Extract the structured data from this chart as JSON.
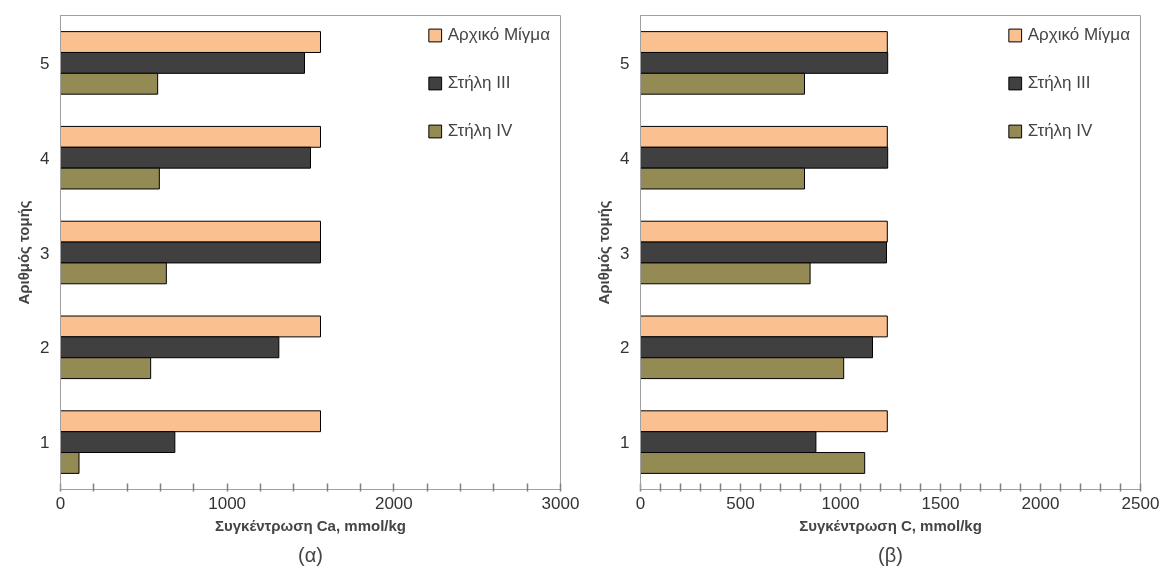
{
  "chart_data": [
    {
      "type": "bar",
      "orientation": "horizontal",
      "categories": [
        "5",
        "4",
        "3",
        "2",
        "1"
      ],
      "xlabel": "Συγκέντρωση Ca, mmol/kg",
      "ylabel": "Αριθμός τομής",
      "annotations": [
        "(α)"
      ],
      "xlim": [
        0,
        3000
      ],
      "xticks": [
        0,
        {
          "value": 200,
          "label": null
        },
        {
          "value": 400,
          "label": null
        },
        {
          "value": 600,
          "label": null
        },
        {
          "value": 800,
          "label": null
        },
        1000,
        {
          "value": 1200,
          "label": null
        },
        {
          "value": 1400,
          "label": null
        },
        {
          "value": 1600,
          "label": null
        },
        {
          "value": 1800,
          "label": null
        },
        2000,
        {
          "value": 2200,
          "label": null
        },
        {
          "value": 2400,
          "label": null
        },
        {
          "value": 2600,
          "label": null
        },
        {
          "value": 2800,
          "label": null
        },
        3000
      ],
      "grid": false,
      "legend": "top right",
      "series": [
        {
          "name": "Αρχικό Μίγμα",
          "color": "#fac090",
          "values": [
            1560,
            1560,
            1560,
            1560,
            1560
          ]
        },
        {
          "name": "Στήλη III",
          "color": "#404040",
          "values": [
            1464,
            1500,
            1560,
            1310,
            686
          ]
        },
        {
          "name": "Στήλη IV",
          "color": "#948a54",
          "values": [
            583,
            593,
            635,
            541,
            111
          ]
        }
      ]
    },
    {
      "type": "bar",
      "orientation": "horizontal",
      "categories": [
        "5",
        "4",
        "3",
        "2",
        "1"
      ],
      "xlabel": "Συγκέντρωση C, mmol/kg",
      "ylabel": "Αριθμός τομής",
      "annotations": [
        "(β)"
      ],
      "xlim": [
        0,
        2500
      ],
      "xticks": [
        0,
        {
          "value": 100,
          "label": null
        },
        {
          "value": 200,
          "label": null
        },
        {
          "value": 300,
          "label": null
        },
        {
          "value": 400,
          "label": null
        },
        500,
        {
          "value": 600,
          "label": null
        },
        {
          "value": 700,
          "label": null
        },
        {
          "value": 800,
          "label": null
        },
        {
          "value": 900,
          "label": null
        },
        1000,
        {
          "value": 1100,
          "label": null
        },
        {
          "value": 1200,
          "label": null
        },
        {
          "value": 1300,
          "label": null
        },
        {
          "value": 1400,
          "label": null
        },
        1500,
        {
          "value": 1600,
          "label": null
        },
        {
          "value": 1700,
          "label": null
        },
        {
          "value": 1800,
          "label": null
        },
        {
          "value": 1900,
          "label": null
        },
        2000,
        {
          "value": 2100,
          "label": null
        },
        {
          "value": 2200,
          "label": null
        },
        {
          "value": 2300,
          "label": null
        },
        {
          "value": 2400,
          "label": null
        },
        2500
      ],
      "grid": false,
      "legend": "top right",
      "series": [
        {
          "name": "Αρχικό Μίγμα",
          "color": "#fac090",
          "values": [
            1234,
            1234,
            1234,
            1234,
            1234
          ]
        },
        {
          "name": "Στήλη III",
          "color": "#404040",
          "values": [
            1236,
            1236,
            1230,
            1160,
            877
          ]
        },
        {
          "name": "Στήλη IV",
          "color": "#948a54",
          "values": [
            820,
            820,
            848,
            1016,
            1121
          ]
        }
      ]
    }
  ]
}
